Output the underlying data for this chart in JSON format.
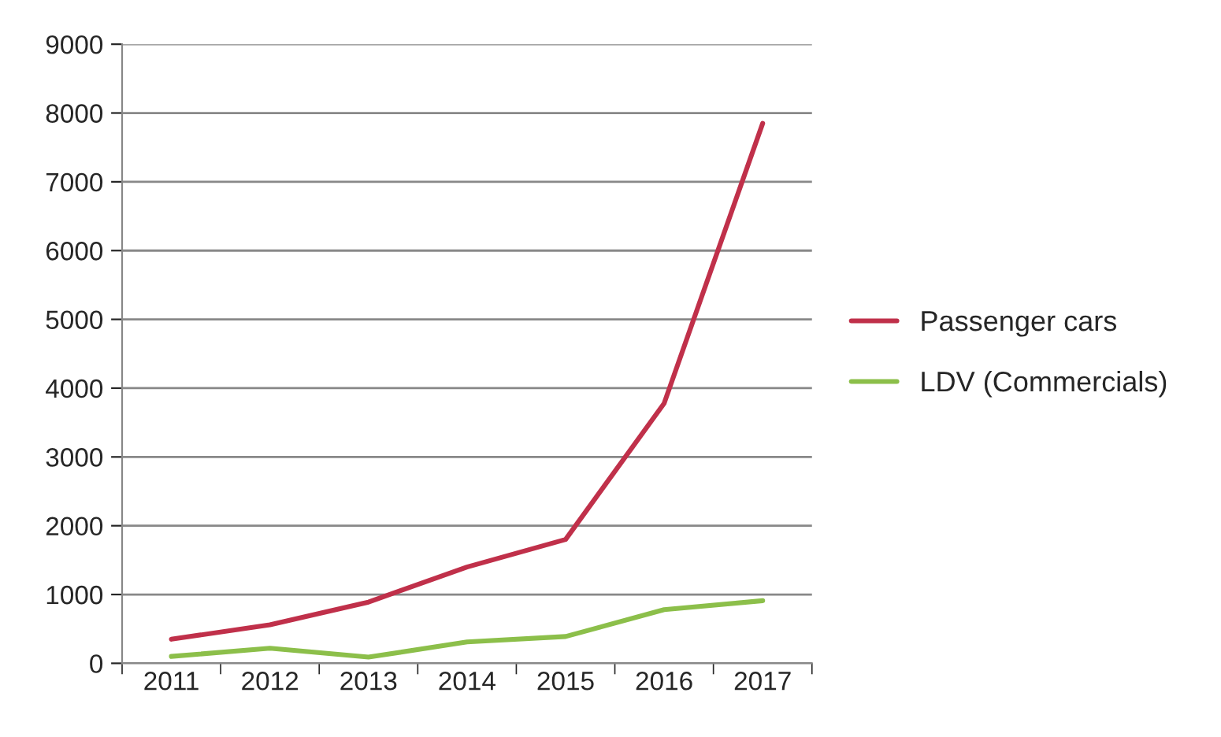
{
  "chart_data": {
    "type": "line",
    "categories": [
      "2011",
      "2012",
      "2013",
      "2014",
      "2015",
      "2016",
      "2017"
    ],
    "series": [
      {
        "name": "Passenger cars",
        "color": "#c0304a",
        "values": [
          350,
          560,
          890,
          1400,
          1800,
          3780,
          7850
        ]
      },
      {
        "name": "LDV (Commercials)",
        "color": "#8cbf4a",
        "values": [
          100,
          220,
          90,
          310,
          390,
          780,
          910
        ]
      }
    ],
    "ylim": [
      0,
      9000
    ],
    "yticks": [
      0,
      1000,
      2000,
      3000,
      4000,
      5000,
      6000,
      7000,
      8000,
      9000
    ],
    "grid": "y",
    "legend": "right",
    "marker": "none",
    "line_style": "solid"
  }
}
